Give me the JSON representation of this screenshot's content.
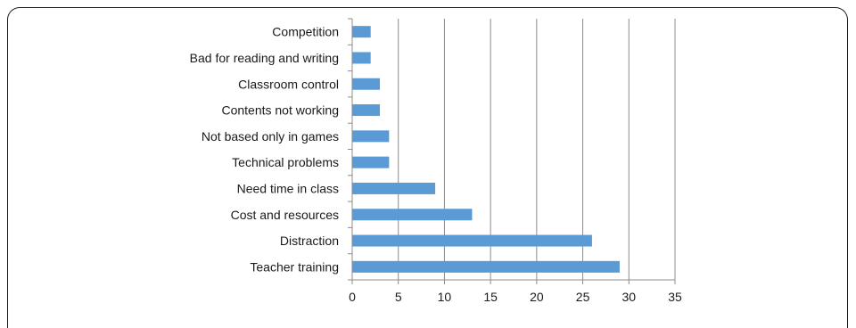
{
  "chart_data": {
    "type": "bar",
    "orientation": "horizontal",
    "categories": [
      "Competition",
      "Bad for reading and writing",
      "Classroom control",
      "Contents not working",
      "Not based only in games",
      "Technical problems",
      "Need time in class",
      "Cost and resources",
      "Distraction",
      "Teacher training"
    ],
    "values": [
      2,
      2,
      3,
      3,
      4,
      4,
      9,
      13,
      26,
      29
    ],
    "xlim": [
      0,
      35
    ],
    "xticks": [
      0,
      5,
      10,
      15,
      20,
      25,
      30,
      35
    ],
    "xtick_labels": [
      "0",
      "5",
      "10",
      "15",
      "20",
      "25",
      "30",
      "35"
    ],
    "title": "",
    "xlabel": "",
    "ylabel": "",
    "grid": "vertical",
    "legend": "none",
    "bar_color": "#5b9bd5",
    "grid_color": "#8c8c8c",
    "axis_color": "#8c8c8c"
  }
}
